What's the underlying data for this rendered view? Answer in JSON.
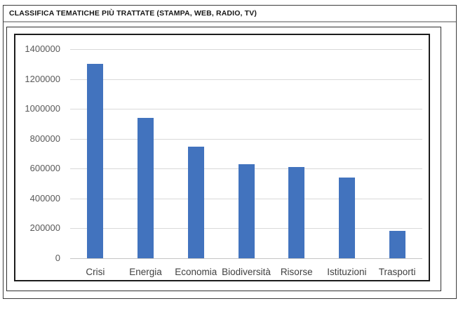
{
  "title": "CLASSIFICA TEMATICHE PIÙ TRATTATE (STAMPA, WEB, RADIO, TV)",
  "chart_data": {
    "type": "bar",
    "title": "CLASSIFICA TEMATICHE PIÙ TRATTATE (STAMPA, WEB, RADIO, TV)",
    "categories": [
      "Crisi",
      "Energia",
      "Economia",
      "Biodiversità",
      "Risorse",
      "Istituzioni",
      "Trasporti"
    ],
    "values": [
      1300000,
      940000,
      745000,
      630000,
      610000,
      540000,
      185000
    ],
    "xlabel": "",
    "ylabel": "",
    "ylim": [
      0,
      1400000
    ],
    "yticks": [
      0,
      200000,
      400000,
      600000,
      800000,
      1000000,
      1200000,
      1400000
    ],
    "grid": true,
    "legend": false,
    "bar_color": "#4273be",
    "gridline_color": "#d9d9d9",
    "axis_text_color": "#595959"
  }
}
